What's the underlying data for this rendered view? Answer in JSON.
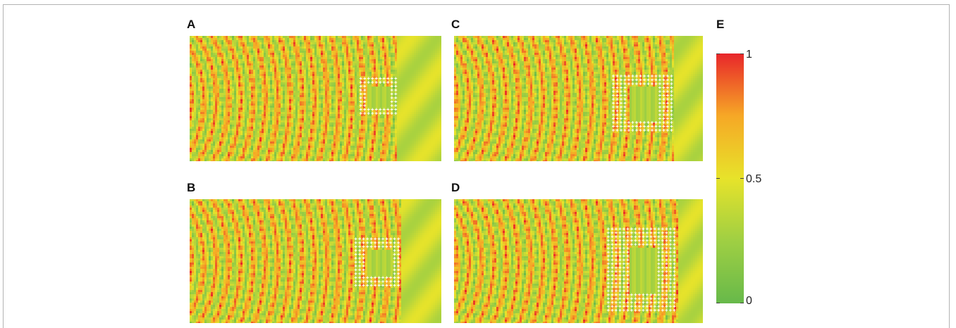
{
  "figure": {
    "panels": [
      {
        "label": "A"
      },
      {
        "label": "B"
      },
      {
        "label": "C"
      },
      {
        "label": "D"
      }
    ],
    "colorbar": {
      "label": "E",
      "ticks": [
        "1",
        "0.5",
        "0"
      ],
      "range": [
        0,
        1
      ],
      "colors": [
        "#67b94a",
        "#9fcf43",
        "#e7e32a",
        "#f6a826",
        "#e8262a"
      ]
    }
  }
}
